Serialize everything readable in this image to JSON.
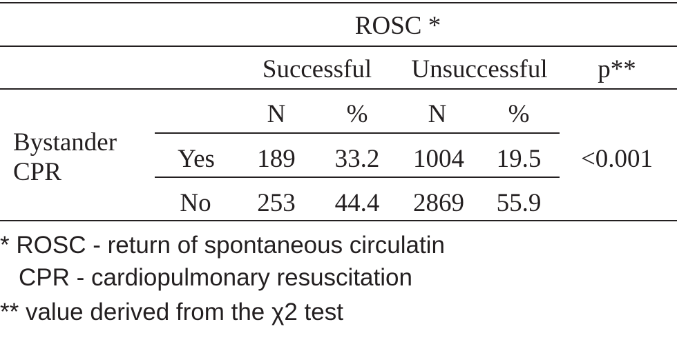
{
  "table": {
    "spanner": "ROSC *",
    "group_headers": {
      "successful": "Successful",
      "unsuccessful": "Unsuccessful",
      "p": "p**"
    },
    "sub_headers": [
      "N",
      "%",
      "N",
      "%"
    ],
    "stub": {
      "line1": "Bystander",
      "line2": "CPR"
    },
    "rows": [
      {
        "label": "Yes",
        "values": [
          "189",
          "33.2",
          "1004",
          "19.5"
        ]
      },
      {
        "label": "No",
        "values": [
          "253",
          "44.4",
          "2869",
          "55.9"
        ]
      }
    ],
    "p_value": "<0.001"
  },
  "footnotes": [
    "* ROSC - return of spontaneous circulatin",
    "CPR - cardiopulmonary resuscitation",
    "** value derived from the χ2 test"
  ]
}
